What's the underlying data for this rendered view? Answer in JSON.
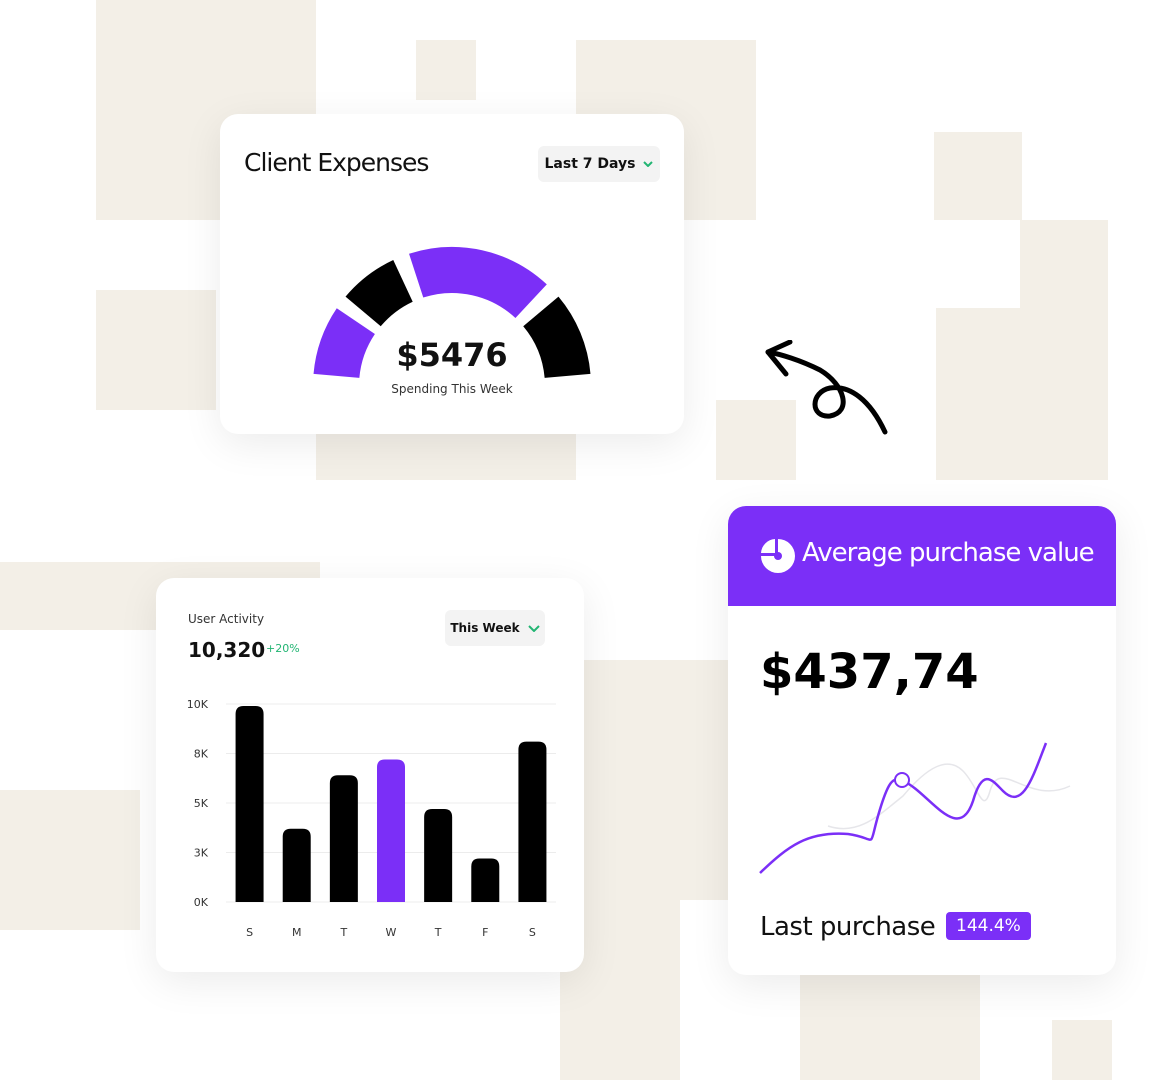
{
  "expenses_card": {
    "title": "Client Expenses",
    "period": "Last 7 Days",
    "amount": "$5476",
    "caption": "Spending This Week"
  },
  "activity_card": {
    "label": "User Activity",
    "total": "10,320",
    "change": "+20%",
    "period": "This Week",
    "chart_data": {
      "type": "bar",
      "categories": [
        "S",
        "M",
        "T",
        "W",
        "T",
        "F",
        "S"
      ],
      "values": [
        9900,
        3700,
        6400,
        7200,
        4700,
        2200,
        8100
      ],
      "colors": [
        "#000000",
        "#000000",
        "#000000",
        "#7b2ff7",
        "#000000",
        "#000000",
        "#000000"
      ],
      "ylim": [
        0,
        10000
      ],
      "yticks": [
        {
          "value": 0,
          "label": "0K"
        },
        {
          "value": 2500,
          "label": "3K"
        },
        {
          "value": 5000,
          "label": "5K"
        },
        {
          "value": 7500,
          "label": "8K"
        },
        {
          "value": 10000,
          "label": "10K"
        }
      ],
      "grid": true
    }
  },
  "purchase_card": {
    "title": "Average purchase value",
    "amount": "$437,74",
    "footer_label": "Last purchase",
    "badge": "144.4%"
  }
}
